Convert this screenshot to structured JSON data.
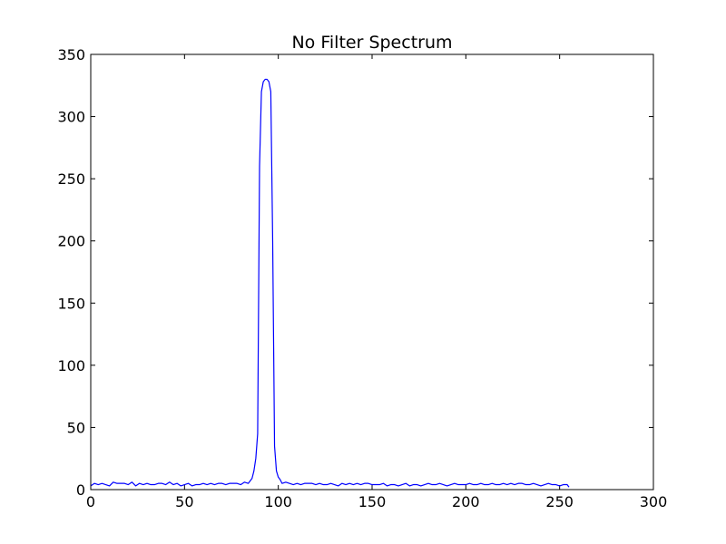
{
  "chart_data": {
    "type": "line",
    "title": "No Filter Spectrum",
    "xlabel": "",
    "ylabel": "",
    "xlim": [
      0,
      300
    ],
    "ylim": [
      0,
      350
    ],
    "xticks": [
      0,
      50,
      100,
      150,
      200,
      250,
      300
    ],
    "yticks": [
      0,
      50,
      100,
      150,
      200,
      250,
      300,
      350
    ],
    "xtick_labels": [
      "0",
      "50",
      "100",
      "150",
      "200",
      "250",
      "300"
    ],
    "ytick_labels": [
      "0",
      "50",
      "100",
      "150",
      "200",
      "250",
      "300",
      "350"
    ],
    "grid": false,
    "series": [
      {
        "color": "#0000ff",
        "x": [
          0,
          2,
          4,
          6,
          8,
          10,
          12,
          14,
          16,
          18,
          20,
          22,
          24,
          26,
          28,
          30,
          32,
          34,
          36,
          38,
          40,
          42,
          44,
          46,
          48,
          50,
          52,
          54,
          56,
          58,
          60,
          62,
          64,
          66,
          68,
          70,
          72,
          74,
          76,
          78,
          80,
          82,
          84,
          85,
          86,
          87,
          88,
          89,
          90,
          91,
          92,
          93,
          94,
          95,
          96,
          97,
          98,
          99,
          100,
          101,
          102,
          104,
          106,
          108,
          110,
          112,
          114,
          116,
          118,
          120,
          122,
          124,
          126,
          128,
          130,
          132,
          134,
          136,
          138,
          140,
          142,
          144,
          146,
          148,
          150,
          152,
          154,
          156,
          158,
          160,
          162,
          164,
          166,
          168,
          170,
          172,
          174,
          176,
          178,
          180,
          182,
          184,
          186,
          188,
          190,
          192,
          194,
          196,
          198,
          200,
          202,
          204,
          206,
          208,
          210,
          212,
          214,
          216,
          218,
          220,
          222,
          224,
          226,
          228,
          230,
          232,
          234,
          236,
          238,
          240,
          242,
          244,
          246,
          248,
          250,
          252,
          254,
          255
        ],
        "y": [
          3,
          5,
          4,
          5,
          4,
          3,
          6,
          5,
          5,
          5,
          4,
          6,
          3,
          5,
          4,
          5,
          4,
          4,
          5,
          5,
          4,
          6,
          4,
          5,
          3,
          4,
          5,
          3,
          4,
          4,
          5,
          4,
          5,
          4,
          5,
          5,
          4,
          5,
          5,
          5,
          4,
          6,
          5,
          7,
          9,
          15,
          25,
          45,
          260,
          320,
          328,
          330,
          330,
          328,
          320,
          200,
          35,
          15,
          10,
          8,
          5,
          6,
          5,
          4,
          5,
          4,
          5,
          5,
          5,
          4,
          5,
          4,
          4,
          5,
          4,
          3,
          5,
          4,
          5,
          4,
          5,
          4,
          5,
          5,
          4,
          4,
          4,
          5,
          3,
          4,
          4,
          3,
          4,
          5,
          3,
          4,
          4,
          3,
          4,
          5,
          4,
          4,
          5,
          4,
          3,
          4,
          5,
          4,
          4,
          4,
          5,
          4,
          4,
          5,
          4,
          4,
          5,
          4,
          4,
          5,
          4,
          5,
          4,
          5,
          5,
          4,
          4,
          5,
          4,
          3,
          4,
          5,
          4,
          4,
          3,
          4,
          4,
          2
        ]
      }
    ]
  }
}
